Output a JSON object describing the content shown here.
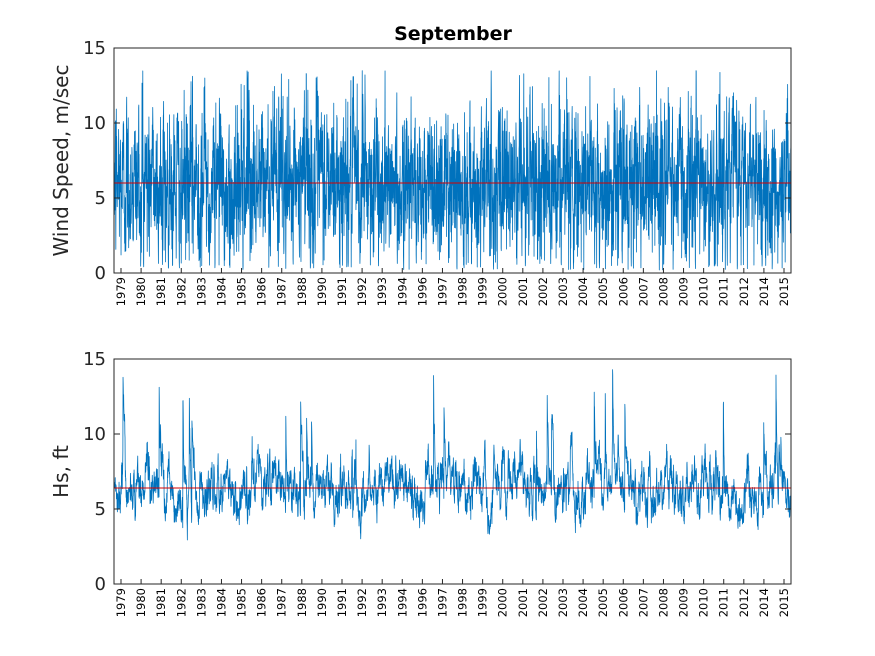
{
  "figure": {
    "title": "September"
  },
  "colors": {
    "series": "#0072BD",
    "mean": "#D40000",
    "frame": "#262626",
    "background": "#ffffff"
  },
  "chart_data": [
    {
      "type": "line",
      "title": "September",
      "ylabel": "Wind Speed, m/sec",
      "xlabel": "",
      "ylim": [
        0,
        15
      ],
      "yticks": [
        0,
        5,
        10,
        15
      ],
      "xlim": [
        1978.7,
        2015.55
      ],
      "xtick_labels": [
        "1979",
        "1980",
        "1981",
        "1982",
        "1983",
        "1984",
        "1985",
        "1986",
        "1987",
        "1988",
        "1990",
        "1991",
        "1992",
        "1993",
        "1994",
        "1996",
        "1997",
        "1998",
        "1999",
        "2000",
        "2001",
        "2002",
        "2003",
        "2004",
        "2005",
        "2006",
        "2007",
        "2008",
        "2009",
        "2010",
        "2011",
        "2012",
        "2014",
        "2015"
      ],
      "series": [
        {
          "values_stats": {
            "min": 0.2,
            "max": 13.5,
            "mean": 6.0
          },
          "samples_per_year": 120
        }
      ],
      "mean_line": 6.0,
      "grid": false
    },
    {
      "type": "line",
      "title": "",
      "ylabel": "Hs, ft",
      "xlabel": "",
      "ylim": [
        0,
        15
      ],
      "yticks": [
        0,
        5,
        10,
        15
      ],
      "xlim": [
        1978.7,
        2015.55
      ],
      "xtick_labels": [
        "1979",
        "1980",
        "1981",
        "1982",
        "1983",
        "1984",
        "1985",
        "1986",
        "1987",
        "1988",
        "1990",
        "1991",
        "1992",
        "1993",
        "1994",
        "1996",
        "1997",
        "1998",
        "1999",
        "2000",
        "2001",
        "2002",
        "2003",
        "2004",
        "2005",
        "2006",
        "2007",
        "2008",
        "2009",
        "2010",
        "2011",
        "2012",
        "2014",
        "2015"
      ],
      "series": [
        {
          "values_stats": {
            "min": 2.8,
            "max": 14.7,
            "mean": 6.4
          },
          "samples_per_year": 120
        }
      ],
      "mean_line": 6.4,
      "grid": false
    }
  ]
}
